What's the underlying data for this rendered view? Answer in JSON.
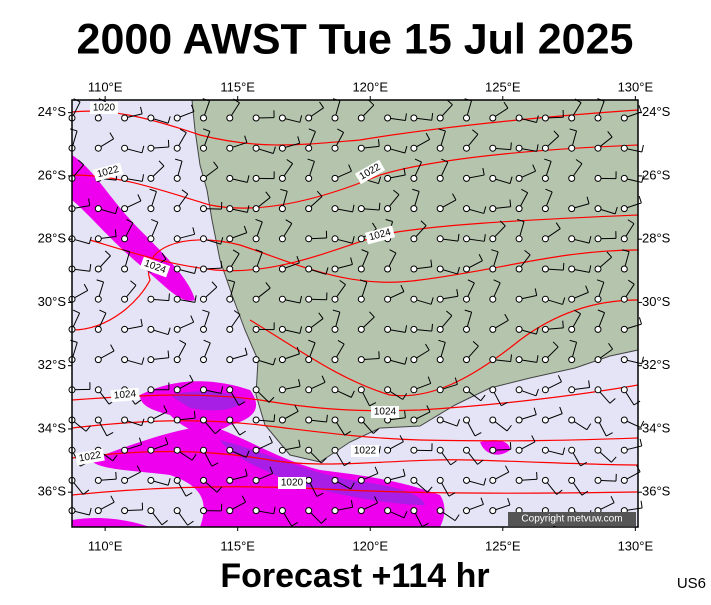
{
  "header": {
    "title": "2000 AWST Tue 15 Jul 2025"
  },
  "map": {
    "lon_range": [
      108.75,
      130.1
    ],
    "lat_range": [
      -23.6,
      -37.1
    ],
    "lon_ticks": [
      {
        "value": 110,
        "label": "110°E"
      },
      {
        "value": 115,
        "label": "115°E"
      },
      {
        "value": 120,
        "label": "120°E"
      },
      {
        "value": 125,
        "label": "125°E"
      },
      {
        "value": 130,
        "label": "130°E"
      }
    ],
    "lat_ticks": [
      {
        "value": -24,
        "label": "24°S"
      },
      {
        "value": -26,
        "label": "26°S"
      },
      {
        "value": -28,
        "label": "28°S"
      },
      {
        "value": -30,
        "label": "30°S"
      },
      {
        "value": -32,
        "label": "32°S"
      },
      {
        "value": -34,
        "label": "34°S"
      },
      {
        "value": -36,
        "label": "36°S"
      }
    ],
    "isobar_labels": [
      1020,
      1022,
      1024,
      1022,
      1024,
      1024,
      1024,
      1022,
      1022,
      1020
    ],
    "copyright": "Copyright metvuw.com"
  },
  "footer": {
    "caption": "Forecast +114 hr",
    "code": "US6"
  }
}
